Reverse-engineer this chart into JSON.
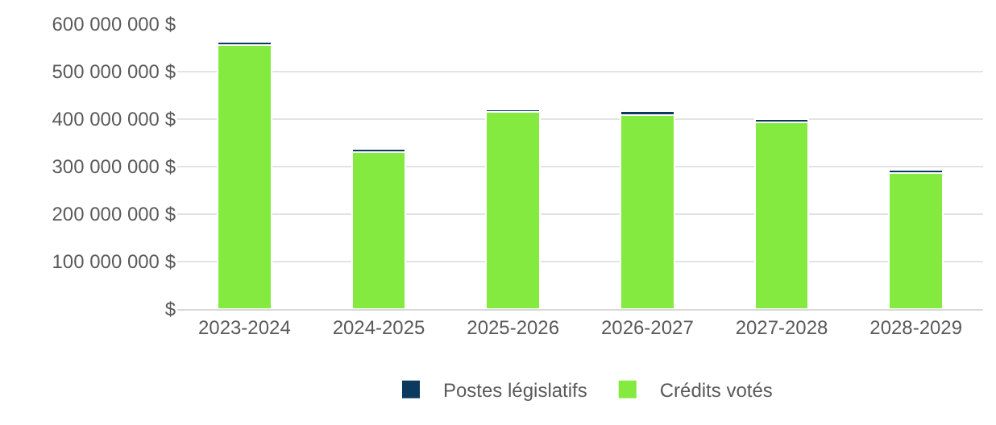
{
  "chart_data": {
    "type": "bar",
    "stacked": true,
    "categories": [
      "2023-2024",
      "2024-2025",
      "2025-2026",
      "2026-2027",
      "2027-2028",
      "2028-2029"
    ],
    "series": [
      {
        "name": "Crédits votés",
        "color": "#84ea3f",
        "values": [
          556000000,
          331000000,
          415000000,
          409000000,
          394000000,
          287000000
        ]
      },
      {
        "name": "Postes législatifs",
        "color": "#0b3a5e",
        "values": [
          6000000,
          7000000,
          6000000,
          8000000,
          6000000,
          7000000
        ]
      }
    ],
    "ylim": [
      0,
      600000000
    ],
    "yticks": [
      {
        "value": 0,
        "label": "$"
      },
      {
        "value": 100000000,
        "label": "100 000 000 $"
      },
      {
        "value": 200000000,
        "label": "200 000 000 $"
      },
      {
        "value": 300000000,
        "label": "300 000 000 $"
      },
      {
        "value": 400000000,
        "label": "400 000 000 $"
      },
      {
        "value": 500000000,
        "label": "500 000 000 $"
      },
      {
        "value": 600000000,
        "label": "600 000 000 $"
      }
    ],
    "grid": "y",
    "legend": "bottom"
  }
}
